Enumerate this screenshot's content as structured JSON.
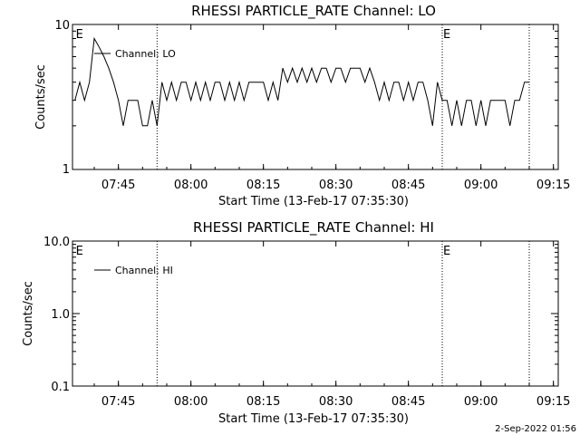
{
  "footer_timestamp": "2-Sep-2022 01:56",
  "chart_data": [
    {
      "type": "line",
      "title": "RHESSI PARTICLE_RATE Channel: LO",
      "xlabel": "Start Time (13-Feb-17 07:35:30)",
      "ylabel": "Counts/sec",
      "yscale": "log",
      "ylim": [
        1,
        10
      ],
      "yticks": [
        "1",
        "10"
      ],
      "xlim": [
        "07:35:30",
        "09:16:00"
      ],
      "xticks": [
        "07:45",
        "08:00",
        "08:15",
        "08:30",
        "08:45",
        "09:00",
        "09:15"
      ],
      "legend_position": "top-left",
      "series": [
        {
          "name": "Channel: LO",
          "x": [
            "07:36",
            "07:37",
            "07:38",
            "07:39",
            "07:40",
            "07:41",
            "07:42",
            "07:43",
            "07:44",
            "07:45",
            "07:46",
            "07:47",
            "07:48",
            "07:49",
            "07:50",
            "07:51",
            "07:52",
            "07:53",
            "07:54",
            "07:55",
            "07:56",
            "07:57",
            "07:58",
            "07:59",
            "08:00",
            "08:01",
            "08:02",
            "08:03",
            "08:04",
            "08:05",
            "08:06",
            "08:07",
            "08:08",
            "08:09",
            "08:10",
            "08:11",
            "08:12",
            "08:13",
            "08:14",
            "08:15",
            "08:16",
            "08:17",
            "08:18",
            "08:19",
            "08:20",
            "08:21",
            "08:22",
            "08:23",
            "08:24",
            "08:25",
            "08:26",
            "08:27",
            "08:28",
            "08:29",
            "08:30",
            "08:31",
            "08:32",
            "08:33",
            "08:34",
            "08:35",
            "08:36",
            "08:37",
            "08:38",
            "08:39",
            "08:40",
            "08:41",
            "08:42",
            "08:43",
            "08:44",
            "08:45",
            "08:46",
            "08:47",
            "08:48",
            "08:49",
            "08:50",
            "08:51",
            "08:52",
            "08:53",
            "08:54",
            "08:55",
            "08:56",
            "08:57",
            "08:58",
            "08:59",
            "09:00",
            "09:01",
            "09:02",
            "09:03",
            "09:04",
            "09:05",
            "09:06",
            "09:07",
            "09:08",
            "09:09",
            "09:10"
          ],
          "y": [
            3,
            4,
            3,
            4,
            8,
            7,
            6,
            5,
            4,
            3,
            2,
            3,
            3,
            3,
            2,
            2,
            3,
            2,
            4,
            3,
            4,
            3,
            4,
            4,
            3,
            4,
            3,
            4,
            3,
            4,
            4,
            3,
            4,
            3,
            4,
            3,
            4,
            4,
            4,
            4,
            3,
            4,
            3,
            5,
            4,
            5,
            4,
            5,
            4,
            5,
            4,
            5,
            5,
            4,
            5,
            5,
            4,
            5,
            5,
            5,
            4,
            5,
            4,
            3,
            4,
            3,
            4,
            4,
            3,
            4,
            3,
            4,
            4,
            3,
            2,
            4,
            3,
            3,
            2,
            3,
            2,
            3,
            3,
            2,
            3,
            2,
            3,
            3,
            3,
            3,
            2,
            3,
            3,
            4,
            4
          ]
        }
      ],
      "vlines": [
        "07:53:00",
        "08:52:00",
        "09:10:00"
      ],
      "markers": [
        {
          "label": "E",
          "x": "07:36:00"
        },
        {
          "label": "E",
          "x": "08:52:00"
        }
      ]
    },
    {
      "type": "line",
      "title": "RHESSI PARTICLE_RATE Channel: HI",
      "xlabel": "Start Time (13-Feb-17 07:35:30)",
      "ylabel": "Counts/sec",
      "yscale": "log",
      "ylim": [
        0.1,
        10
      ],
      "yticks": [
        "0.1",
        "1.0",
        "10.0"
      ],
      "xlim": [
        "07:35:30",
        "09:16:00"
      ],
      "xticks": [
        "07:45",
        "08:00",
        "08:15",
        "08:30",
        "08:45",
        "09:00",
        "09:15"
      ],
      "legend_position": "top-left",
      "series": [
        {
          "name": "Channel: HI",
          "x": [],
          "y": []
        }
      ],
      "vlines": [
        "07:53:00",
        "08:52:00",
        "09:10:00"
      ],
      "markers": [
        {
          "label": "E",
          "x": "07:36:00"
        },
        {
          "label": "E",
          "x": "08:52:00"
        }
      ]
    }
  ]
}
